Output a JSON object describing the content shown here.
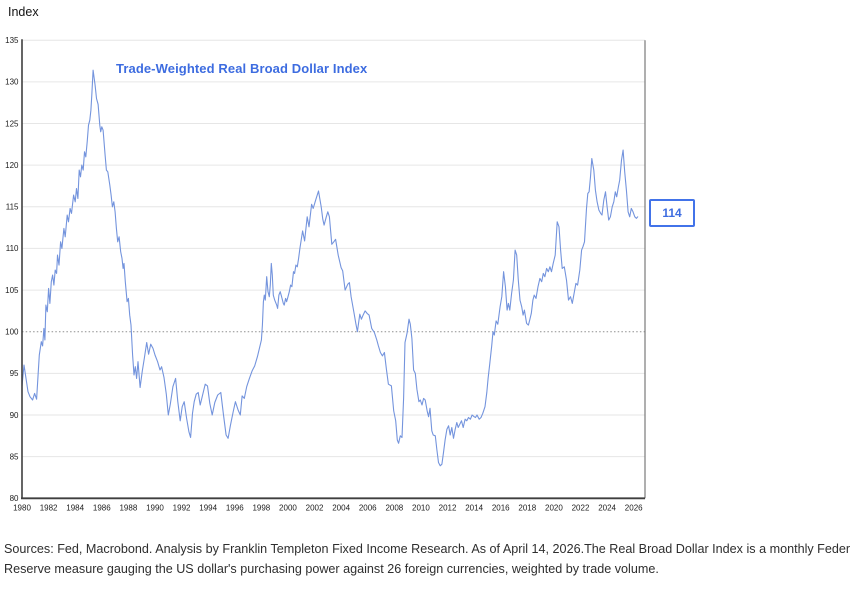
{
  "chart_data": {
    "type": "line",
    "title": "Trade-Weighted Real Broad Dollar Index",
    "ylabel": "Index",
    "end_label": "114",
    "x_ticks": [
      1980,
      1982,
      1984,
      1986,
      1988,
      1990,
      1992,
      1994,
      1996,
      1998,
      2000,
      2002,
      2004,
      2006,
      2008,
      2010,
      2012,
      2014,
      2016,
      2018,
      2020,
      2022,
      2024,
      2026
    ],
    "y_ticks": [
      80,
      85,
      90,
      95,
      100,
      105,
      110,
      115,
      120,
      125,
      130,
      135
    ],
    "ylim": [
      80,
      135
    ],
    "xlim": [
      1980,
      2026.85
    ],
    "reference_line": 100,
    "grid": true,
    "legend_position": "none",
    "colors": {
      "line": "#7494dd",
      "accent": "#3d6ce0",
      "badge_border": "#4273e9",
      "grid": "#e6e6e6",
      "axis": "#3f3f3f",
      "border": "#7a7a7a",
      "reference": "#8f8f8f",
      "tick_text": "#1c1c1c"
    },
    "points": [
      [
        1980,
        93.5
      ],
      [
        1980.15,
        96
      ],
      [
        1980.45,
        92.8
      ],
      [
        1980.6,
        92.2
      ],
      [
        1980.8,
        91.8
      ],
      [
        1980.95,
        92.6
      ],
      [
        1981.1,
        91.9
      ],
      [
        1981.3,
        97.2
      ],
      [
        1981.45,
        98.8
      ],
      [
        1981.55,
        98.3
      ],
      [
        1981.65,
        100.4
      ],
      [
        1981.72,
        99
      ],
      [
        1981.8,
        103.2
      ],
      [
        1981.9,
        102.4
      ],
      [
        1982,
        105.2
      ],
      [
        1982.1,
        103.4
      ],
      [
        1982.2,
        106
      ],
      [
        1982.3,
        106.8
      ],
      [
        1982.4,
        105.6
      ],
      [
        1982.5,
        107.4
      ],
      [
        1982.6,
        107
      ],
      [
        1982.67,
        109.2
      ],
      [
        1982.78,
        108
      ],
      [
        1982.9,
        110.8
      ],
      [
        1983,
        110
      ],
      [
        1983.15,
        112.4
      ],
      [
        1983.25,
        111.4
      ],
      [
        1983.4,
        114
      ],
      [
        1983.5,
        113.2
      ],
      [
        1983.62,
        114.8
      ],
      [
        1983.72,
        114.2
      ],
      [
        1983.88,
        116.4
      ],
      [
        1984,
        115.6
      ],
      [
        1984.1,
        117.2
      ],
      [
        1984.2,
        116
      ],
      [
        1984.3,
        119.4
      ],
      [
        1984.4,
        118.6
      ],
      [
        1984.5,
        120
      ],
      [
        1984.6,
        119.4
      ],
      [
        1984.7,
        121.6
      ],
      [
        1984.8,
        121
      ],
      [
        1984.9,
        122.8
      ],
      [
        1985,
        124.8
      ],
      [
        1985.1,
        125.4
      ],
      [
        1985.18,
        126.6
      ],
      [
        1985.25,
        128.4
      ],
      [
        1985.35,
        131.4
      ],
      [
        1985.5,
        129.6
      ],
      [
        1985.6,
        128
      ],
      [
        1985.72,
        127.3
      ],
      [
        1985.85,
        124.8
      ],
      [
        1985.92,
        124
      ],
      [
        1986,
        124.6
      ],
      [
        1986.1,
        124.2
      ],
      [
        1986.25,
        121.2
      ],
      [
        1986.35,
        119.4
      ],
      [
        1986.45,
        119.2
      ],
      [
        1986.6,
        117.6
      ],
      [
        1986.7,
        116.4
      ],
      [
        1986.8,
        115
      ],
      [
        1986.9,
        115.6
      ],
      [
        1987,
        114.4
      ],
      [
        1987.1,
        112.4
      ],
      [
        1987.2,
        110.8
      ],
      [
        1987.3,
        111.4
      ],
      [
        1987.42,
        109.6
      ],
      [
        1987.52,
        108.8
      ],
      [
        1987.6,
        107.6
      ],
      [
        1987.67,
        108.2
      ],
      [
        1987.77,
        106
      ],
      [
        1987.9,
        103.6
      ],
      [
        1988,
        104
      ],
      [
        1988.1,
        102
      ],
      [
        1988.2,
        100.8
      ],
      [
        1988.32,
        97.2
      ],
      [
        1988.42,
        94.8
      ],
      [
        1988.52,
        95.8
      ],
      [
        1988.62,
        94.4
      ],
      [
        1988.72,
        96.4
      ],
      [
        1988.88,
        93.3
      ],
      [
        1989.05,
        95.3
      ],
      [
        1989.2,
        96.8
      ],
      [
        1989.38,
        98.7
      ],
      [
        1989.52,
        97.3
      ],
      [
        1989.68,
        98.5
      ],
      [
        1989.85,
        98
      ],
      [
        1990,
        97.2
      ],
      [
        1990.2,
        96.4
      ],
      [
        1990.38,
        95.4
      ],
      [
        1990.5,
        95.8
      ],
      [
        1990.68,
        94.5
      ],
      [
        1990.85,
        92.5
      ],
      [
        1991,
        90
      ],
      [
        1991.15,
        91.3
      ],
      [
        1991.35,
        93.4
      ],
      [
        1991.55,
        94.4
      ],
      [
        1991.72,
        91.6
      ],
      [
        1991.9,
        89.3
      ],
      [
        1992.05,
        91
      ],
      [
        1992.2,
        91.6
      ],
      [
        1992.38,
        89.6
      ],
      [
        1992.55,
        88
      ],
      [
        1992.68,
        87.3
      ],
      [
        1992.82,
        90.2
      ],
      [
        1992.95,
        91.6
      ],
      [
        1993.1,
        92.5
      ],
      [
        1993.25,
        92.7
      ],
      [
        1993.4,
        91.2
      ],
      [
        1993.58,
        92.4
      ],
      [
        1993.78,
        93.7
      ],
      [
        1993.95,
        93.5
      ],
      [
        1994.12,
        91.4
      ],
      [
        1994.3,
        90
      ],
      [
        1994.5,
        91.5
      ],
      [
        1994.72,
        92.4
      ],
      [
        1994.95,
        92.7
      ],
      [
        1995.15,
        90
      ],
      [
        1995.35,
        87.6
      ],
      [
        1995.5,
        87.2
      ],
      [
        1995.68,
        88.8
      ],
      [
        1995.88,
        90.4
      ],
      [
        1996.05,
        91.6
      ],
      [
        1996.25,
        90.6
      ],
      [
        1996.42,
        90
      ],
      [
        1996.55,
        92.3
      ],
      [
        1996.72,
        92
      ],
      [
        1996.9,
        93.4
      ],
      [
        1997.1,
        94.4
      ],
      [
        1997.3,
        95.3
      ],
      [
        1997.5,
        95.9
      ],
      [
        1997.7,
        97
      ],
      [
        1997.85,
        98
      ],
      [
        1998,
        99
      ],
      [
        1998.08,
        100.8
      ],
      [
        1998.15,
        103.6
      ],
      [
        1998.22,
        104.4
      ],
      [
        1998.3,
        103.8
      ],
      [
        1998.4,
        106.6
      ],
      [
        1998.5,
        104.8
      ],
      [
        1998.6,
        104.2
      ],
      [
        1998.67,
        105.6
      ],
      [
        1998.75,
        108.2
      ],
      [
        1998.82,
        106.8
      ],
      [
        1998.9,
        104.4
      ],
      [
        1999,
        103.8
      ],
      [
        1999.15,
        103.2
      ],
      [
        1999.22,
        102.8
      ],
      [
        1999.32,
        104.4
      ],
      [
        1999.42,
        104.8
      ],
      [
        1999.52,
        104.2
      ],
      [
        1999.65,
        103.4
      ],
      [
        1999.72,
        103.2
      ],
      [
        1999.82,
        104
      ],
      [
        1999.9,
        103.6
      ],
      [
        2000,
        104.2
      ],
      [
        2000.1,
        104.8
      ],
      [
        2000.2,
        105.6
      ],
      [
        2000.3,
        105.4
      ],
      [
        2000.42,
        107.2
      ],
      [
        2000.5,
        107
      ],
      [
        2000.6,
        108
      ],
      [
        2000.7,
        107.8
      ],
      [
        2000.8,
        108.8
      ],
      [
        2000.9,
        110
      ],
      [
        2001.1,
        112.1
      ],
      [
        2001.25,
        110.9
      ],
      [
        2001.45,
        113.8
      ],
      [
        2001.58,
        112.6
      ],
      [
        2001.78,
        115.3
      ],
      [
        2001.9,
        114.8
      ],
      [
        2002.1,
        115.9
      ],
      [
        2002.3,
        116.9
      ],
      [
        2002.5,
        115
      ],
      [
        2002.62,
        113.5
      ],
      [
        2002.72,
        112.8
      ],
      [
        2002.88,
        113.8
      ],
      [
        2003,
        114.4
      ],
      [
        2003.12,
        113.8
      ],
      [
        2003.3,
        110.5
      ],
      [
        2003.45,
        110.8
      ],
      [
        2003.58,
        111.1
      ],
      [
        2003.78,
        109.2
      ],
      [
        2004,
        107.7
      ],
      [
        2004.12,
        107.3
      ],
      [
        2004.3,
        105
      ],
      [
        2004.5,
        105.7
      ],
      [
        2004.62,
        105.9
      ],
      [
        2004.75,
        104.2
      ],
      [
        2004.95,
        102.4
      ],
      [
        2005.1,
        101
      ],
      [
        2005.22,
        100
      ],
      [
        2005.4,
        102.1
      ],
      [
        2005.52,
        101.5
      ],
      [
        2005.65,
        102
      ],
      [
        2005.8,
        102.5
      ],
      [
        2005.95,
        102.2
      ],
      [
        2006.1,
        102
      ],
      [
        2006.3,
        100.4
      ],
      [
        2006.5,
        99.9
      ],
      [
        2006.68,
        99
      ],
      [
        2006.8,
        98.3
      ],
      [
        2006.95,
        97.5
      ],
      [
        2007.1,
        97.1
      ],
      [
        2007.25,
        97.5
      ],
      [
        2007.4,
        95.5
      ],
      [
        2007.55,
        93.7
      ],
      [
        2007.78,
        93.5
      ],
      [
        2007.95,
        90.5
      ],
      [
        2008.1,
        89.3
      ],
      [
        2008.22,
        87
      ],
      [
        2008.32,
        86.6
      ],
      [
        2008.45,
        87.5
      ],
      [
        2008.58,
        87.3
      ],
      [
        2008.7,
        92
      ],
      [
        2008.8,
        98.7
      ],
      [
        2008.95,
        99.8
      ],
      [
        2009.1,
        101.5
      ],
      [
        2009.2,
        100.9
      ],
      [
        2009.32,
        99.2
      ],
      [
        2009.45,
        95.4
      ],
      [
        2009.58,
        95
      ],
      [
        2009.7,
        93.1
      ],
      [
        2009.85,
        91.6
      ],
      [
        2009.95,
        91.8
      ],
      [
        2010.08,
        91.2
      ],
      [
        2010.2,
        92
      ],
      [
        2010.32,
        91.8
      ],
      [
        2010.48,
        90.4
      ],
      [
        2010.58,
        89.8
      ],
      [
        2010.68,
        90.8
      ],
      [
        2010.82,
        88.1
      ],
      [
        2010.92,
        87.6
      ],
      [
        2011.08,
        87.5
      ],
      [
        2011.2,
        85.8
      ],
      [
        2011.32,
        84.3
      ],
      [
        2011.45,
        83.9
      ],
      [
        2011.58,
        84.1
      ],
      [
        2011.7,
        85.5
      ],
      [
        2011.82,
        87
      ],
      [
        2011.95,
        88.3
      ],
      [
        2012.08,
        88.7
      ],
      [
        2012.2,
        87.6
      ],
      [
        2012.32,
        88.5
      ],
      [
        2012.45,
        87.2
      ],
      [
        2012.58,
        88.3
      ],
      [
        2012.7,
        89.1
      ],
      [
        2012.8,
        88.5
      ],
      [
        2012.92,
        88.9
      ],
      [
        2013.05,
        89.3
      ],
      [
        2013.18,
        88.5
      ],
      [
        2013.32,
        89.5
      ],
      [
        2013.45,
        89.3
      ],
      [
        2013.58,
        89.7
      ],
      [
        2013.72,
        89.5
      ],
      [
        2013.85,
        90
      ],
      [
        2014,
        89.8
      ],
      [
        2014.1,
        89.7
      ],
      [
        2014.22,
        90
      ],
      [
        2014.38,
        89.5
      ],
      [
        2014.52,
        89.7
      ],
      [
        2014.65,
        90.2
      ],
      [
        2014.82,
        91
      ],
      [
        2014.95,
        92.7
      ],
      [
        2015.05,
        94.4
      ],
      [
        2015.18,
        96.2
      ],
      [
        2015.32,
        98.3
      ],
      [
        2015.42,
        100
      ],
      [
        2015.52,
        99.6
      ],
      [
        2015.65,
        101.3
      ],
      [
        2015.78,
        100.9
      ],
      [
        2015.95,
        103
      ],
      [
        2016.08,
        104.2
      ],
      [
        2016.22,
        107.2
      ],
      [
        2016.35,
        105.4
      ],
      [
        2016.48,
        102.6
      ],
      [
        2016.58,
        103.4
      ],
      [
        2016.68,
        102.6
      ],
      [
        2016.82,
        104.6
      ],
      [
        2016.95,
        106.2
      ],
      [
        2017.08,
        109.8
      ],
      [
        2017.2,
        109.2
      ],
      [
        2017.32,
        106.2
      ],
      [
        2017.45,
        103.8
      ],
      [
        2017.58,
        103
      ],
      [
        2017.68,
        102
      ],
      [
        2017.78,
        102.6
      ],
      [
        2017.95,
        101
      ],
      [
        2018.08,
        100.8
      ],
      [
        2018.18,
        101.4
      ],
      [
        2018.3,
        102.2
      ],
      [
        2018.42,
        103.8
      ],
      [
        2018.52,
        104.4
      ],
      [
        2018.65,
        104
      ],
      [
        2018.8,
        105.4
      ],
      [
        2018.95,
        106.4
      ],
      [
        2019.08,
        106
      ],
      [
        2019.2,
        107
      ],
      [
        2019.32,
        106.6
      ],
      [
        2019.45,
        107.6
      ],
      [
        2019.58,
        107.2
      ],
      [
        2019.7,
        107.8
      ],
      [
        2019.82,
        107.2
      ],
      [
        2019.95,
        108.2
      ],
      [
        2020.1,
        109.2
      ],
      [
        2020.25,
        113.2
      ],
      [
        2020.38,
        112.6
      ],
      [
        2020.5,
        109.8
      ],
      [
        2020.62,
        107.6
      ],
      [
        2020.78,
        107.8
      ],
      [
        2020.95,
        106.2
      ],
      [
        2021.1,
        103.8
      ],
      [
        2021.25,
        104.2
      ],
      [
        2021.38,
        103.4
      ],
      [
        2021.52,
        104.6
      ],
      [
        2021.65,
        105.8
      ],
      [
        2021.78,
        105.6
      ],
      [
        2021.95,
        107.4
      ],
      [
        2022.08,
        109.8
      ],
      [
        2022.18,
        110.2
      ],
      [
        2022.3,
        110.8
      ],
      [
        2022.45,
        114.8
      ],
      [
        2022.55,
        116.6
      ],
      [
        2022.65,
        116.8
      ],
      [
        2022.75,
        118.6
      ],
      [
        2022.85,
        120.8
      ],
      [
        2023,
        119.4
      ],
      [
        2023.12,
        117
      ],
      [
        2023.25,
        115.6
      ],
      [
        2023.38,
        114.6
      ],
      [
        2023.52,
        114.2
      ],
      [
        2023.62,
        114
      ],
      [
        2023.75,
        115.8
      ],
      [
        2023.88,
        116.8
      ],
      [
        2024,
        115
      ],
      [
        2024.12,
        113.4
      ],
      [
        2024.25,
        113.8
      ],
      [
        2024.38,
        115
      ],
      [
        2024.5,
        115.6
      ],
      [
        2024.62,
        116.8
      ],
      [
        2024.72,
        116.2
      ],
      [
        2024.85,
        117.4
      ],
      [
        2024.95,
        118.2
      ],
      [
        2025.08,
        120.6
      ],
      [
        2025.2,
        121.8
      ],
      [
        2025.32,
        119.2
      ],
      [
        2025.45,
        117
      ],
      [
        2025.58,
        114.4
      ],
      [
        2025.7,
        113.8
      ],
      [
        2025.82,
        114.8
      ],
      [
        2025.95,
        114.4
      ],
      [
        2026.08,
        113.8
      ],
      [
        2026.2,
        113.6
      ],
      [
        2026.3,
        113.8
      ]
    ]
  },
  "footer": {
    "lines": [
      "Sources: Fed, Macrobond. Analysis by Franklin Templeton Fixed Income Research. As of April 14, 2026.The Real Broad Dollar Index is a monthly Federal",
      "Reserve measure gauging the US dollar's purchasing power against 26 foreign currencies, weighted by trade volume."
    ]
  }
}
